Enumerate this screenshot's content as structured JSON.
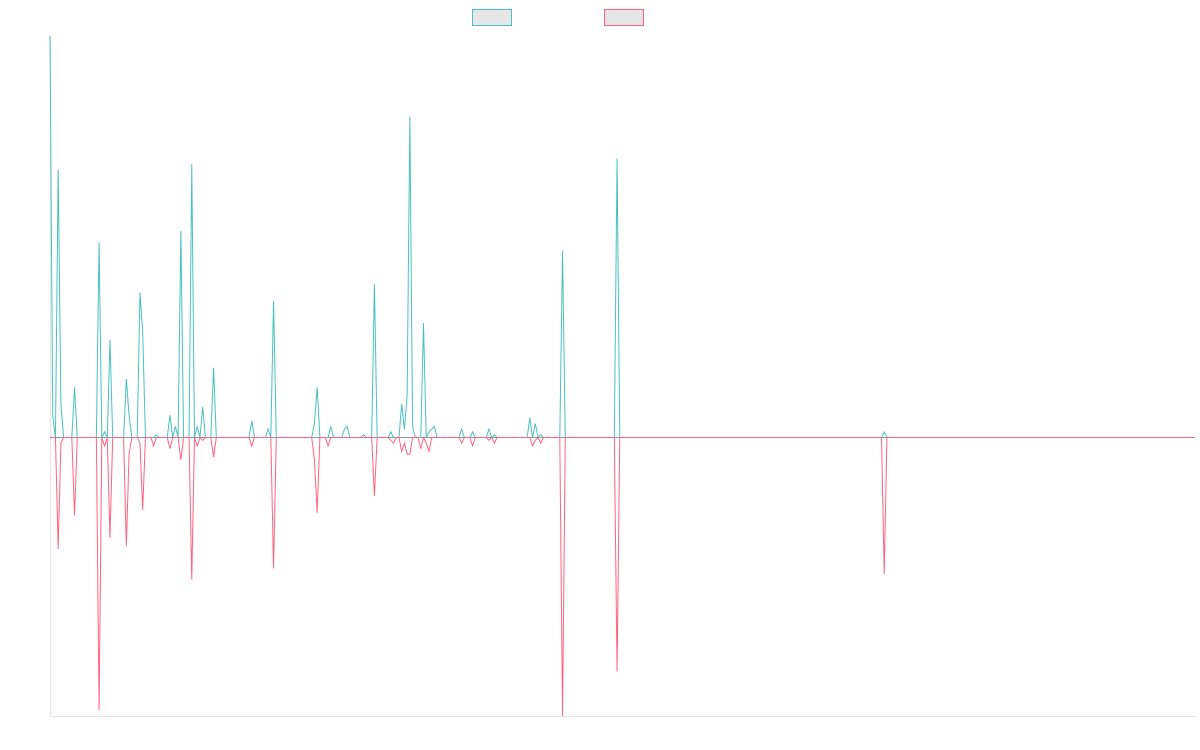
{
  "chart_data": {
    "type": "line",
    "title": "",
    "xlabel": "",
    "ylabel": "",
    "x_count": 421,
    "ylim": [
      -1.0,
      1.44
    ],
    "grid": false,
    "legend_placement": "top-center",
    "colors": {
      "series_a": "#4bc0c0",
      "series_b": "#ff6384"
    },
    "series": [
      {
        "key": "series_a",
        "points": [
          [
            0,
            1.44
          ],
          [
            1,
            0.08
          ],
          [
            2,
            0.0
          ],
          [
            3,
            0.96
          ],
          [
            4,
            0.12
          ],
          [
            5,
            0.0
          ],
          [
            8,
            0.0
          ],
          [
            9,
            0.18
          ],
          [
            10,
            0.0
          ],
          [
            17,
            0.0
          ],
          [
            18,
            0.7
          ],
          [
            19,
            0.0
          ],
          [
            20,
            0.02
          ],
          [
            21,
            0.0
          ],
          [
            22,
            0.35
          ],
          [
            23,
            0.0
          ],
          [
            27,
            0.0
          ],
          [
            28,
            0.21
          ],
          [
            29,
            0.08
          ],
          [
            30,
            0.0
          ],
          [
            32,
            0.0
          ],
          [
            33,
            0.52
          ],
          [
            34,
            0.38
          ],
          [
            35,
            0.0
          ],
          [
            38,
            0.0
          ],
          [
            39,
            0.01
          ],
          [
            40,
            0.0
          ],
          [
            43,
            0.0
          ],
          [
            44,
            0.08
          ],
          [
            45,
            0.0
          ],
          [
            46,
            0.04
          ],
          [
            47,
            0.0
          ],
          [
            48,
            0.74
          ],
          [
            49,
            0.0
          ],
          [
            51,
            0.0
          ],
          [
            52,
            0.98
          ],
          [
            53,
            0.0
          ],
          [
            54,
            0.04
          ],
          [
            55,
            0.0
          ],
          [
            56,
            0.11
          ],
          [
            57,
            0.0
          ],
          [
            59,
            0.0
          ],
          [
            60,
            0.25
          ],
          [
            61,
            0.0
          ],
          [
            73,
            0.0
          ],
          [
            74,
            0.06
          ],
          [
            75,
            0.0
          ],
          [
            79,
            0.0
          ],
          [
            80,
            0.03
          ],
          [
            81,
            0.0
          ],
          [
            82,
            0.49
          ],
          [
            83,
            0.0
          ],
          [
            96,
            0.0
          ],
          [
            97,
            0.05
          ],
          [
            98,
            0.18
          ],
          [
            99,
            0.0
          ],
          [
            102,
            0.0
          ],
          [
            103,
            0.04
          ],
          [
            104,
            0.0
          ],
          [
            107,
            0.0
          ],
          [
            108,
            0.03
          ],
          [
            109,
            0.04
          ],
          [
            110,
            0.0
          ],
          [
            114,
            0.0
          ],
          [
            115,
            0.01
          ],
          [
            116,
            0.0
          ],
          [
            118,
            0.0
          ],
          [
            119,
            0.55
          ],
          [
            120,
            0.0
          ],
          [
            124,
            0.0
          ],
          [
            125,
            0.02
          ],
          [
            126,
            0.0
          ],
          [
            128,
            0.0
          ],
          [
            129,
            0.12
          ],
          [
            130,
            0.03
          ],
          [
            131,
            0.15
          ],
          [
            132,
            1.15
          ],
          [
            133,
            0.04
          ],
          [
            134,
            0.0
          ],
          [
            136,
            0.0
          ],
          [
            137,
            0.41
          ],
          [
            138,
            0.0
          ],
          [
            139,
            0.02
          ],
          [
            140,
            0.03
          ],
          [
            141,
            0.04
          ],
          [
            142,
            0.0
          ],
          [
            150,
            0.0
          ],
          [
            151,
            0.03
          ],
          [
            152,
            0.0
          ],
          [
            154,
            0.0
          ],
          [
            155,
            0.02
          ],
          [
            156,
            0.0
          ],
          [
            160,
            0.0
          ],
          [
            161,
            0.03
          ],
          [
            162,
            0.0
          ],
          [
            163,
            0.01
          ],
          [
            164,
            0.0
          ],
          [
            175,
            0.0
          ],
          [
            176,
            0.07
          ],
          [
            177,
            0.0
          ],
          [
            178,
            0.05
          ],
          [
            179,
            0.0
          ],
          [
            180,
            0.01
          ],
          [
            181,
            0.0
          ],
          [
            187,
            0.0
          ],
          [
            188,
            0.67
          ],
          [
            189,
            0.0
          ],
          [
            207,
            0.0
          ],
          [
            208,
            1.0
          ],
          [
            209,
            0.0
          ],
          [
            305,
            0.0
          ],
          [
            306,
            0.02
          ],
          [
            307,
            0.0
          ],
          [
            420,
            0.0
          ]
        ]
      },
      {
        "key": "series_b",
        "points": [
          [
            0,
            0.0
          ],
          [
            2,
            0.0
          ],
          [
            3,
            -0.4
          ],
          [
            4,
            -0.02
          ],
          [
            5,
            0.0
          ],
          [
            8,
            0.0
          ],
          [
            9,
            -0.28
          ],
          [
            10,
            0.0
          ],
          [
            17,
            0.0
          ],
          [
            18,
            -0.98
          ],
          [
            19,
            0.0
          ],
          [
            20,
            -0.03
          ],
          [
            21,
            0.0
          ],
          [
            22,
            -0.36
          ],
          [
            23,
            0.0
          ],
          [
            27,
            0.0
          ],
          [
            28,
            -0.39
          ],
          [
            29,
            -0.06
          ],
          [
            30,
            0.0
          ],
          [
            32,
            0.0
          ],
          [
            33,
            -0.02
          ],
          [
            34,
            -0.26
          ],
          [
            35,
            0.0
          ],
          [
            37,
            0.0
          ],
          [
            38,
            -0.03
          ],
          [
            39,
            0.0
          ],
          [
            43,
            0.0
          ],
          [
            44,
            -0.04
          ],
          [
            45,
            0.0
          ],
          [
            47,
            0.0
          ],
          [
            48,
            -0.08
          ],
          [
            49,
            0.0
          ],
          [
            51,
            0.0
          ],
          [
            52,
            -0.51
          ],
          [
            53,
            0.0
          ],
          [
            54,
            -0.03
          ],
          [
            55,
            0.0
          ],
          [
            56,
            -0.01
          ],
          [
            57,
            0.0
          ],
          [
            59,
            0.0
          ],
          [
            60,
            -0.07
          ],
          [
            61,
            0.0
          ],
          [
            73,
            0.0
          ],
          [
            74,
            -0.03
          ],
          [
            75,
            0.0
          ],
          [
            81,
            0.0
          ],
          [
            82,
            -0.47
          ],
          [
            83,
            0.0
          ],
          [
            96,
            0.0
          ],
          [
            97,
            -0.08
          ],
          [
            98,
            -0.27
          ],
          [
            99,
            0.0
          ],
          [
            101,
            0.0
          ],
          [
            102,
            -0.03
          ],
          [
            103,
            0.0
          ],
          [
            118,
            0.0
          ],
          [
            119,
            -0.21
          ],
          [
            120,
            0.0
          ],
          [
            124,
            0.0
          ],
          [
            125,
            -0.01
          ],
          [
            126,
            -0.02
          ],
          [
            127,
            0.0
          ],
          [
            128,
            0.0
          ],
          [
            129,
            -0.05
          ],
          [
            130,
            -0.02
          ],
          [
            131,
            -0.06
          ],
          [
            132,
            -0.06
          ],
          [
            133,
            0.0
          ],
          [
            135,
            0.0
          ],
          [
            136,
            -0.04
          ],
          [
            137,
            0.0
          ],
          [
            138,
            -0.02
          ],
          [
            139,
            -0.05
          ],
          [
            140,
            0.0
          ],
          [
            150,
            0.0
          ],
          [
            151,
            -0.02
          ],
          [
            152,
            0.0
          ],
          [
            154,
            0.0
          ],
          [
            155,
            -0.03
          ],
          [
            156,
            0.0
          ],
          [
            160,
            0.0
          ],
          [
            161,
            -0.01
          ],
          [
            162,
            0.0
          ],
          [
            163,
            -0.02
          ],
          [
            164,
            0.0
          ],
          [
            176,
            0.0
          ],
          [
            177,
            -0.03
          ],
          [
            178,
            -0.01
          ],
          [
            179,
            0.0
          ],
          [
            180,
            -0.02
          ],
          [
            181,
            0.0
          ],
          [
            187,
            0.0
          ],
          [
            188,
            -1.0
          ],
          [
            189,
            0.0
          ],
          [
            207,
            0.0
          ],
          [
            208,
            -0.84
          ],
          [
            209,
            0.0
          ],
          [
            305,
            0.0
          ],
          [
            306,
            -0.49
          ],
          [
            307,
            0.0
          ],
          [
            420,
            0.0
          ]
        ]
      }
    ]
  }
}
